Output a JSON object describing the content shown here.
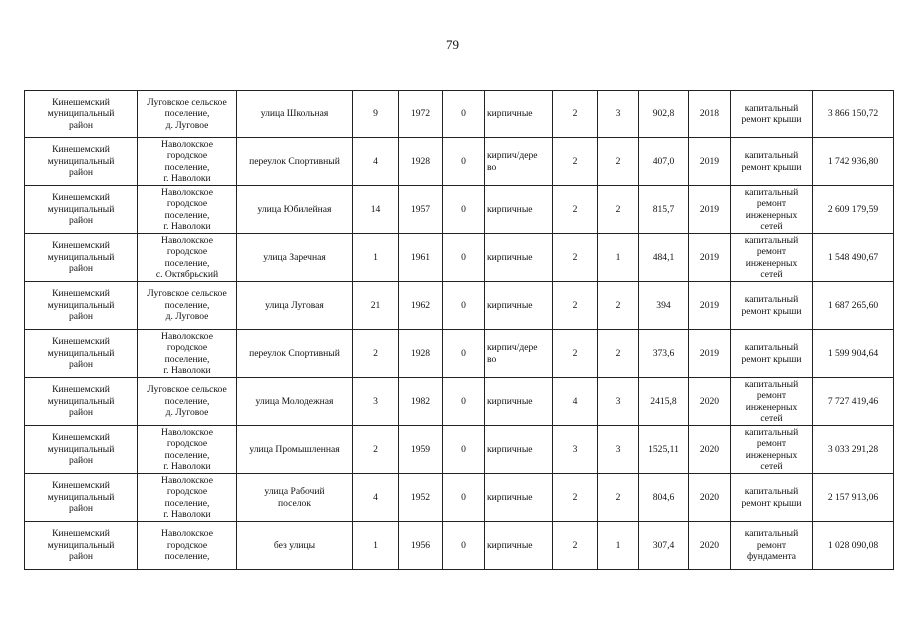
{
  "page_number": "79",
  "rows": [
    [
      "Кинешемский\nмуниципальный\nрайон",
      "Луговское сельское\nпоселение,\nд. Луговое",
      "улица Школьная",
      "9",
      "1972",
      "0",
      "кирпичные",
      "2",
      "3",
      "902,8",
      "2018",
      "капитальный\nремонт крыши",
      "3 866 150,72"
    ],
    [
      "Кинешемский\nмуниципальный\nрайон",
      "Наволокское\nгородское\nпоселение,\nг. Наволоки",
      "переулок Спортивный",
      "4",
      "1928",
      "0",
      "кирпич/дере\nво",
      "2",
      "2",
      "407,0",
      "2019",
      "капитальный\nремонт крыши",
      "1 742 936,80"
    ],
    [
      "Кинешемский\nмуниципальный\nрайон",
      "Наволокское\nгородское\nпоселение,\nг. Наволоки",
      "улица Юбилейная",
      "14",
      "1957",
      "0",
      "кирпичные",
      "2",
      "2",
      "815,7",
      "2019",
      "капитальный\nремонт\nинженерных\nсетей",
      "2 609 179,59"
    ],
    [
      "Кинешемский\nмуниципальный\nрайон",
      "Наволокское\nгородское\nпоселение,\nс. Октябрьский",
      "улица Заречная",
      "1",
      "1961",
      "0",
      "кирпичные",
      "2",
      "1",
      "484,1",
      "2019",
      "капитальный\nремонт\nинженерных\nсетей",
      "1 548 490,67"
    ],
    [
      "Кинешемский\nмуниципальный\nрайон",
      "Луговское сельское\nпоселение,\nд. Луговое",
      "улица Луговая",
      "21",
      "1962",
      "0",
      "кирпичные",
      "2",
      "2",
      "394",
      "2019",
      "капитальный\nремонт крыши",
      "1 687 265,60"
    ],
    [
      "Кинешемский\nмуниципальный\nрайон",
      "Наволокское\nгородское\nпоселение,\nг. Наволоки",
      "переулок Спортивный",
      "2",
      "1928",
      "0",
      "кирпич/дере\nво",
      "2",
      "2",
      "373,6",
      "2019",
      "капитальный\nремонт крыши",
      "1 599 904,64"
    ],
    [
      "Кинешемский\nмуниципальный\nрайон",
      "Луговское сельское\nпоселение,\nд. Луговое",
      "улица Молодежная",
      "3",
      "1982",
      "0",
      "кирпичные",
      "4",
      "3",
      "2415,8",
      "2020",
      "капитальный\nремонт\nинженерных\nсетей",
      "7 727 419,46"
    ],
    [
      "Кинешемский\nмуниципальный\nрайон",
      "Наволокское\nгородское\nпоселение,\nг. Наволоки",
      "улица Промышленная",
      "2",
      "1959",
      "0",
      "кирпичные",
      "3",
      "3",
      "1525,11",
      "2020",
      "капитальный\nремонт\nинженерных\nсетей",
      "3 033 291,28"
    ],
    [
      "Кинешемский\nмуниципальный\nрайон",
      "Наволокское\nгородское\nпоселение,\nг. Наволоки",
      "улица Рабочий\nпоселок",
      "4",
      "1952",
      "0",
      "кирпичные",
      "2",
      "2",
      "804,6",
      "2020",
      "капитальный\nремонт крыши",
      "2 157 913,06"
    ],
    [
      "Кинешемский\nмуниципальный\nрайон",
      "Наволокское\nгородское\nпоселение,",
      "без улицы",
      "1",
      "1956",
      "0",
      "кирпичные",
      "2",
      "1",
      "307,4",
      "2020",
      "капитальный\nремонт\nфундамента",
      "1 028 090,08"
    ]
  ]
}
